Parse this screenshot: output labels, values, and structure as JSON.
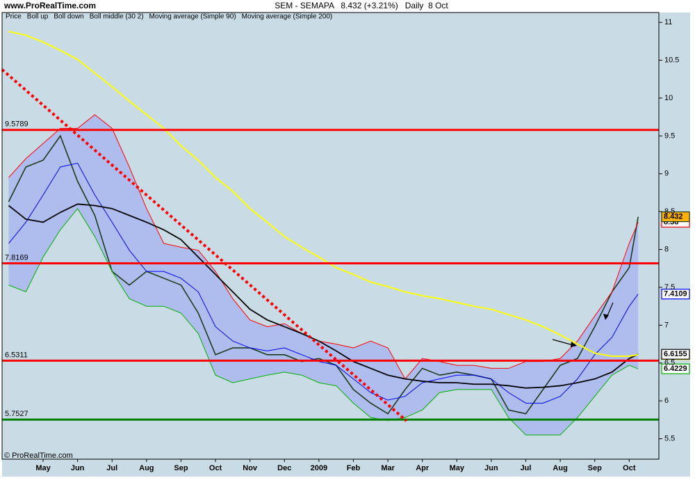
{
  "chart_data": {
    "type": "line",
    "site": "www.ProRealTime.com",
    "title": "SEM - SEMAPA   8.432 (+3.21%)   Daily  8 Oct",
    "copyright": "© ProRealTime.com",
    "x": [
      -1,
      -0.5,
      0,
      0.5,
      1,
      1.5,
      2,
      2.5,
      3,
      3.5,
      4,
      4.5,
      5,
      5.5,
      6,
      6.5,
      7,
      7.5,
      8,
      8.5,
      9,
      9.5,
      10,
      10.5,
      11,
      11.5,
      12,
      12.5,
      13,
      13.5,
      14,
      14.5,
      15,
      15.5,
      16,
      16.5,
      17,
      17.26
    ],
    "series": [
      {
        "name": "Price",
        "color": "#1a3a1a",
        "values": [
          8.63,
          9.09,
          9.18,
          9.5,
          8.9,
          8.45,
          7.71,
          7.53,
          7.71,
          7.62,
          7.53,
          7.16,
          6.61,
          6.7,
          6.7,
          6.61,
          6.61,
          6.52,
          6.56,
          6.47,
          6.15,
          5.97,
          5.83,
          6.15,
          6.43,
          6.34,
          6.38,
          6.34,
          6.29,
          5.88,
          5.83,
          6.15,
          6.47,
          6.56,
          6.98,
          7.44,
          7.76,
          8.432
        ]
      },
      {
        "name": "Boll up",
        "color": "#ff0000",
        "values": [
          8.95,
          9.2,
          9.4,
          9.6,
          9.6,
          9.78,
          9.6,
          9.09,
          8.54,
          8.08,
          8.03,
          7.99,
          7.71,
          7.35,
          7.07,
          6.98,
          7.02,
          6.89,
          6.79,
          6.75,
          6.7,
          6.79,
          6.7,
          6.29,
          6.56,
          6.52,
          6.47,
          6.47,
          6.43,
          6.43,
          6.52,
          6.52,
          6.56,
          6.79,
          7.12,
          7.44,
          8.08,
          8.36
        ]
      },
      {
        "name": "Boll down",
        "color": "#00b000",
        "values": [
          7.53,
          7.44,
          7.9,
          8.26,
          8.54,
          8.17,
          7.71,
          7.35,
          7.25,
          7.25,
          7.16,
          6.89,
          6.34,
          6.24,
          6.29,
          6.34,
          6.38,
          6.34,
          6.24,
          6.2,
          5.97,
          5.78,
          5.74,
          5.78,
          5.88,
          6.11,
          6.15,
          6.15,
          6.15,
          5.78,
          5.55,
          5.55,
          5.55,
          5.78,
          6.06,
          6.34,
          6.47,
          6.4229
        ]
      },
      {
        "name": "Boll middle (30 2)",
        "color": "#0000ff",
        "values": [
          8.08,
          8.36,
          8.72,
          9.09,
          9.14,
          8.72,
          8.36,
          7.99,
          7.71,
          7.71,
          7.62,
          7.44,
          6.98,
          6.79,
          6.7,
          6.66,
          6.7,
          6.61,
          6.52,
          6.47,
          6.29,
          6.11,
          6.01,
          6.06,
          6.24,
          6.29,
          6.34,
          6.34,
          6.29,
          6.11,
          5.97,
          5.97,
          6.06,
          6.29,
          6.61,
          6.84,
          7.25,
          7.4109
        ]
      },
      {
        "name": "Moving average (Simple 90)",
        "color": "#000000",
        "values": [
          8.58,
          8.4,
          8.36,
          8.49,
          8.6,
          8.58,
          8.54,
          8.45,
          8.36,
          8.26,
          8.13,
          7.9,
          7.67,
          7.44,
          7.21,
          7.07,
          6.98,
          6.89,
          6.79,
          6.66,
          6.52,
          6.43,
          6.34,
          6.29,
          6.26,
          6.24,
          6.24,
          6.22,
          6.22,
          6.2,
          6.17,
          6.18,
          6.2,
          6.24,
          6.29,
          6.38,
          6.56,
          6.6155
        ]
      },
      {
        "name": "Moving average (Simple 200)",
        "color": "#ffff00",
        "values": [
          10.88,
          10.83,
          10.74,
          10.63,
          10.51,
          10.33,
          10.15,
          9.96,
          9.78,
          9.6,
          9.37,
          9.18,
          8.95,
          8.77,
          8.54,
          8.36,
          8.17,
          8.03,
          7.9,
          7.76,
          7.67,
          7.57,
          7.51,
          7.44,
          7.39,
          7.35,
          7.3,
          7.25,
          7.21,
          7.14,
          7.07,
          6.98,
          6.87,
          6.75,
          6.63,
          6.59,
          6.59,
          6.61
        ]
      }
    ],
    "band_color": "#a9b7ef",
    "xlim": [
      -1.19,
      17.86
    ],
    "xticks": [
      {
        "value": 0,
        "label": "May"
      },
      {
        "value": 1,
        "label": "Jun"
      },
      {
        "value": 2,
        "label": "Jul"
      },
      {
        "value": 3,
        "label": "Aug"
      },
      {
        "value": 4,
        "label": "Sep"
      },
      {
        "value": 5,
        "label": "Oct"
      },
      {
        "value": 6,
        "label": "Nov"
      },
      {
        "value": 7,
        "label": "Dec"
      },
      {
        "value": 8,
        "label": "2009"
      },
      {
        "value": 9,
        "label": "Feb"
      },
      {
        "value": 10,
        "label": "Mar"
      },
      {
        "value": 11,
        "label": "Apr"
      },
      {
        "value": 12,
        "label": "May"
      },
      {
        "value": 13,
        "label": "Jun"
      },
      {
        "value": 14,
        "label": "Jul"
      },
      {
        "value": 15,
        "label": "Aug"
      },
      {
        "value": 16,
        "label": "Sep"
      },
      {
        "value": 17,
        "label": "Oct"
      }
    ],
    "ylim": [
      5.23,
      11.13
    ],
    "yticks": [
      5.5,
      6,
      6.5,
      7,
      7.5,
      8,
      8.5,
      9,
      9.5,
      10,
      10.5,
      11
    ],
    "levels": [
      9.5789,
      7.8169,
      6.5311,
      5.7527
    ],
    "level_colors": [
      "#ff0000",
      "#ff0000",
      "#ff0000",
      "#008000"
    ]
  }
}
